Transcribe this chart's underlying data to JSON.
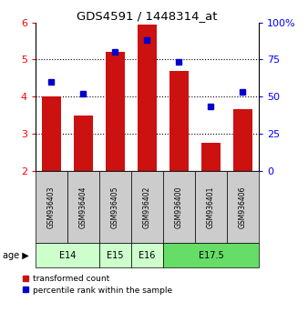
{
  "title": "GDS4591 / 1448314_at",
  "samples": [
    "GSM936403",
    "GSM936404",
    "GSM936405",
    "GSM936402",
    "GSM936400",
    "GSM936401",
    "GSM936406"
  ],
  "red_values": [
    4.0,
    3.5,
    5.2,
    5.95,
    4.7,
    2.75,
    3.65
  ],
  "blue_values": [
    4.4,
    4.07,
    5.22,
    5.52,
    4.95,
    3.73,
    4.13
  ],
  "bar_color": "#cc1111",
  "marker_color": "#0000cc",
  "ylim_left": [
    2,
    6
  ],
  "ylim_right": [
    0,
    100
  ],
  "yticks_left": [
    2,
    3,
    4,
    5,
    6
  ],
  "yticks_right": [
    0,
    25,
    50,
    75,
    100
  ],
  "ytick_labels_right": [
    "0",
    "25",
    "50",
    "75",
    "100%"
  ],
  "age_groups": [
    {
      "label": "E14",
      "start": 0,
      "end": 2,
      "color": "#ccffcc"
    },
    {
      "label": "E15",
      "start": 2,
      "end": 3,
      "color": "#ccffcc"
    },
    {
      "label": "E16",
      "start": 3,
      "end": 4,
      "color": "#ccffcc"
    },
    {
      "label": "E17.5",
      "start": 4,
      "end": 7,
      "color": "#66dd66"
    }
  ],
  "age_label": "age",
  "legend_red": "transformed count",
  "legend_blue": "percentile rank within the sample",
  "bar_bottom": 2.0,
  "sample_box_color": "#cccccc",
  "grid_lines": [
    3,
    4,
    5
  ]
}
